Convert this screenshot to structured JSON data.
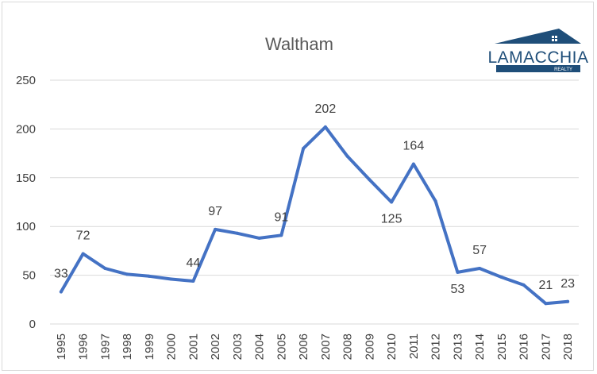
{
  "chart_data": {
    "type": "line",
    "title": "Waltham",
    "xlabel": "",
    "ylabel": "",
    "ylim": [
      0,
      250
    ],
    "yticks": [
      0,
      50,
      100,
      150,
      200,
      250
    ],
    "grid": "horizontal",
    "legend": "none",
    "x": [
      "1995",
      "1996",
      "1997",
      "1998",
      "1999",
      "2000",
      "2001",
      "2002",
      "2003",
      "2004",
      "2005",
      "2006",
      "2007",
      "2008",
      "2009",
      "2010",
      "2011",
      "2012",
      "2013",
      "2014",
      "2015",
      "2016",
      "2017",
      "2018"
    ],
    "series": [
      {
        "color": "#4472c4",
        "values": [
          33,
          72,
          57,
          51,
          49,
          46,
          44,
          97,
          93,
          88,
          91,
          180,
          202,
          172,
          148,
          125,
          164,
          126,
          53,
          57,
          48,
          40,
          21,
          23
        ]
      }
    ],
    "data_labels": [
      {
        "index": 0,
        "text": "33",
        "pos": "above"
      },
      {
        "index": 1,
        "text": "72",
        "pos": "above"
      },
      {
        "index": 6,
        "text": "44",
        "pos": "above"
      },
      {
        "index": 7,
        "text": "97",
        "pos": "above"
      },
      {
        "index": 10,
        "text": "91",
        "pos": "above"
      },
      {
        "index": 12,
        "text": "202",
        "pos": "above"
      },
      {
        "index": 15,
        "text": "125",
        "pos": "below"
      },
      {
        "index": 16,
        "text": "164",
        "pos": "above"
      },
      {
        "index": 18,
        "text": "53",
        "pos": "below"
      },
      {
        "index": 19,
        "text": "57",
        "pos": "above"
      },
      {
        "index": 22,
        "text": "21",
        "pos": "above"
      },
      {
        "index": 23,
        "text": "23",
        "pos": "above"
      }
    ]
  },
  "logo": {
    "word": "LAMACCHIA",
    "sub": "REALTY",
    "color": "#1f4e79"
  }
}
